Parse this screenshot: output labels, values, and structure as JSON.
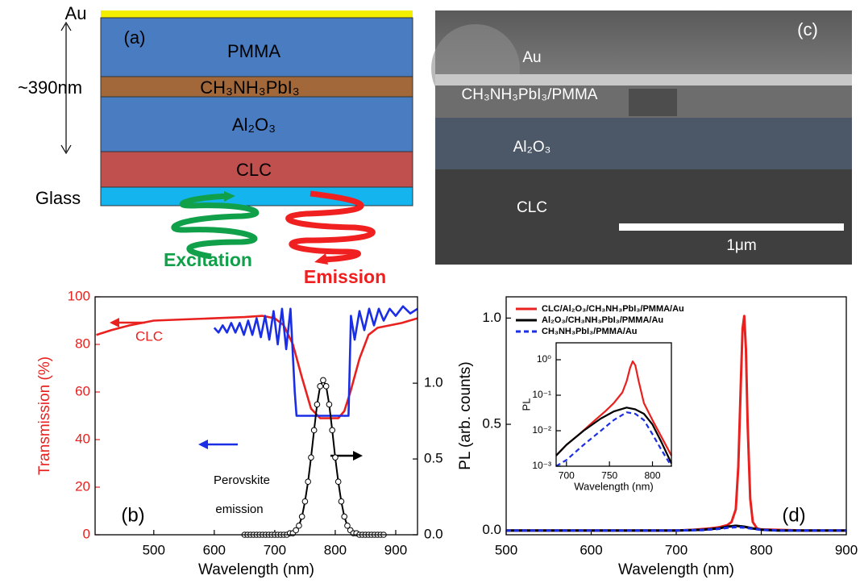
{
  "diagram": {
    "au": "Au",
    "panel": "(a)",
    "pmma": "PMMA",
    "perovskite": "CH₃NH₃PbI₃",
    "thickness": "~390nm",
    "alumina": "Al₂O₃",
    "clc": "CLC",
    "glass": "Glass",
    "excitation": "Excitation",
    "emission": "Emission"
  },
  "sem": {
    "panel": "(c)",
    "au": "Au",
    "layer": "CH₃NH₃PbI₃/PMMA",
    "alumina": "Al₂O₃",
    "clc": "CLC",
    "scale": "1μm"
  },
  "chart_data": [
    {
      "type": "line",
      "xlabel": "Wavelength (nm)",
      "ylabel": "Transmission (%)",
      "y_axis_color": "#e8211f",
      "xlim": [
        403,
        936
      ],
      "ylim": [
        0,
        100
      ],
      "y2lim": [
        0,
        1.57
      ],
      "xticks": [
        500,
        600,
        700,
        800,
        900
      ],
      "yticks": [
        0,
        20,
        40,
        60,
        80,
        100
      ],
      "y2ticks": [
        {
          "value": 0,
          "label": "0.0"
        },
        {
          "value": 0.5,
          "label": "0.5"
        },
        {
          "value": 1,
          "label": "1.0"
        }
      ],
      "annotations": [
        "CLC",
        "Perovskite",
        "emission",
        "(b)"
      ],
      "series": [
        {
          "color": "#e8211f",
          "x": [
            405,
            430,
            460,
            500,
            550,
            600,
            650,
            680,
            700,
            715,
            730,
            745,
            760,
            775,
            790,
            805,
            815,
            825,
            840,
            855,
            870,
            890,
            910,
            936
          ],
          "values": [
            84,
            86,
            88,
            90,
            90.5,
            91,
            91.5,
            92,
            91,
            88,
            80,
            66,
            53,
            49,
            49,
            49,
            52,
            60,
            74,
            84,
            87,
            88,
            89,
            91
          ]
        },
        {
          "color": "#1a2ee6",
          "x": [
            600,
            607,
            614,
            621,
            628,
            635,
            642,
            649,
            656,
            663,
            670,
            677,
            684,
            691,
            698,
            705,
            712,
            719,
            726,
            733,
            736,
            740,
            760,
            780,
            800,
            815,
            822,
            826,
            832,
            840,
            848,
            856,
            864,
            872,
            880,
            890,
            900,
            912,
            924,
            936
          ],
          "values": [
            87,
            85,
            88,
            85,
            89,
            85,
            89,
            84,
            90,
            84,
            91,
            83,
            92,
            82,
            94,
            80,
            95,
            78,
            95,
            60,
            50,
            50,
            50,
            50,
            50,
            50,
            50,
            92,
            82,
            94,
            86,
            95,
            88,
            95,
            90,
            95,
            92,
            96,
            93,
            95
          ]
        },
        {
          "color": "#000000",
          "axis": "y2",
          "marker": "circle",
          "x": [
            650,
            655,
            660,
            665,
            670,
            675,
            680,
            685,
            690,
            695,
            700,
            705,
            710,
            715,
            720,
            725,
            730,
            735,
            740,
            745,
            750,
            755,
            760,
            765,
            770,
            775,
            780,
            785,
            790,
            795,
            800,
            805,
            810,
            815,
            820,
            825,
            830,
            835,
            840,
            845,
            850,
            855,
            860,
            865,
            870,
            875,
            880
          ],
          "values": [
            0,
            0,
            0,
            0,
            0,
            0,
            0,
            0,
            0,
            0,
            0,
            0,
            0,
            0,
            0,
            0.01,
            0.01,
            0.03,
            0.06,
            0.12,
            0.22,
            0.35,
            0.51,
            0.69,
            0.86,
            0.98,
            1.02,
            0.98,
            0.86,
            0.69,
            0.51,
            0.35,
            0.22,
            0.12,
            0.06,
            0.03,
            0.01,
            0.01,
            0,
            0,
            0,
            0,
            0,
            0,
            0,
            0,
            0
          ]
        }
      ]
    },
    {
      "type": "line",
      "xlabel": "Wavelength (nm)",
      "ylabel": "PL (arb. counts)",
      "xlim": [
        500,
        900
      ],
      "ylim": [
        -0.02,
        1.1
      ],
      "xticks": [
        500,
        600,
        700,
        800,
        900
      ],
      "yticks": [
        {
          "value": 0,
          "label": "0.0"
        },
        {
          "value": 0.5,
          "label": "0.5"
        },
        {
          "value": 1,
          "label": "1.0"
        }
      ],
      "legend": "upper left",
      "annotations": [
        "(d)"
      ],
      "series": [
        {
          "name": "CLC/Al₂O₃/CH₃NH₃PbI₃/PMMA/Au",
          "color": "#e8211f",
          "x": [
            500,
            600,
            700,
            720,
            740,
            750,
            760,
            765,
            770,
            773,
            776,
            778,
            780,
            782,
            784,
            787,
            790,
            795,
            800,
            850,
            900
          ],
          "values": [
            0,
            0,
            0,
            0.003,
            0.01,
            0.015,
            0.025,
            0.04,
            0.1,
            0.3,
            0.7,
            0.95,
            1.01,
            0.85,
            0.5,
            0.15,
            0.04,
            0.01,
            0.005,
            0,
            0
          ]
        },
        {
          "name": "Al₂O₃/CH₃NH₃PbI₃/PMMA/Au",
          "color": "#000000",
          "x": [
            500,
            700,
            730,
            750,
            760,
            770,
            780,
            790,
            800,
            820,
            900
          ],
          "values": [
            0,
            0,
            0.003,
            0.01,
            0.018,
            0.022,
            0.018,
            0.01,
            0.004,
            0,
            0
          ]
        },
        {
          "name": "CH₃NH₃PbI₃/PMMA/Au",
          "color": "#1a2ee6",
          "dash": true,
          "x": [
            500,
            700,
            730,
            750,
            760,
            770,
            780,
            790,
            800,
            820,
            900
          ],
          "values": [
            0,
            0,
            0.002,
            0.008,
            0.013,
            0.016,
            0.014,
            0.008,
            0.003,
            0,
            0
          ]
        }
      ]
    },
    {
      "type": "line",
      "xlabel": "Wavelength (nm)",
      "ylabel": "PL",
      "ylog": true,
      "xlim": [
        688,
        822
      ],
      "ylim": [
        0.001,
        3
      ],
      "xticks": [
        700,
        750,
        800
      ],
      "yticks": [
        {
          "value": 1,
          "label": "10⁰"
        },
        {
          "value": 0.1,
          "label": "10⁻¹"
        },
        {
          "value": 0.01,
          "label": "10⁻²"
        },
        {
          "value": 0.001,
          "label": "10⁻³"
        }
      ],
      "series": [
        {
          "color": "#e8211f",
          "x": [
            688,
            700,
            715,
            730,
            745,
            755,
            765,
            770,
            774,
            777,
            780,
            784,
            790,
            800,
            810,
            822
          ],
          "values": [
            0.002,
            0.004,
            0.008,
            0.017,
            0.035,
            0.06,
            0.12,
            0.25,
            0.6,
            0.9,
            0.7,
            0.25,
            0.06,
            0.02,
            0.007,
            0.002
          ]
        },
        {
          "color": "#000000",
          "x": [
            688,
            700,
            720,
            740,
            755,
            770,
            780,
            790,
            800,
            810,
            822
          ],
          "values": [
            0.002,
            0.004,
            0.01,
            0.022,
            0.035,
            0.045,
            0.04,
            0.03,
            0.015,
            0.005,
            0.0012
          ]
        },
        {
          "color": "#1a2ee6",
          "dash": true,
          "x": [
            688,
            700,
            720,
            740,
            755,
            770,
            780,
            790,
            800,
            810,
            822
          ],
          "values": [
            0.001,
            0.0015,
            0.004,
            0.01,
            0.02,
            0.033,
            0.03,
            0.02,
            0.008,
            0.003,
            0.001
          ]
        }
      ]
    }
  ]
}
